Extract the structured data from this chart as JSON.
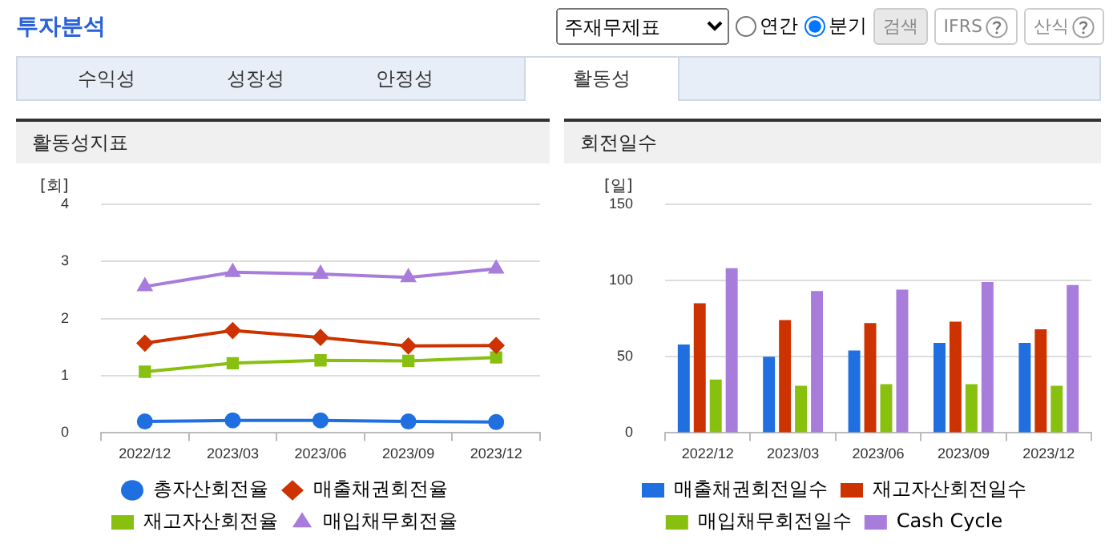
{
  "chart_data": [
    {
      "type": "line",
      "title": "활동성지표",
      "ylabel": "[회]",
      "categories": [
        "2022/12",
        "2023/03",
        "2023/06",
        "2023/09",
        "2023/12"
      ],
      "series": [
        {
          "name": "총자산회전율",
          "color": "#1f6fe0",
          "marker": "circle",
          "values": [
            0.2,
            0.22,
            0.22,
            0.2,
            0.19
          ]
        },
        {
          "name": "매출채권회전율",
          "color": "#cc3300",
          "marker": "diamond",
          "values": [
            1.57,
            1.79,
            1.67,
            1.52,
            1.53
          ]
        },
        {
          "name": "재고자산회전율",
          "color": "#88c010",
          "marker": "square",
          "values": [
            1.07,
            1.22,
            1.27,
            1.26,
            1.32
          ]
        },
        {
          "name": "매입채무회전율",
          "color": "#a77cdb",
          "marker": "triangle",
          "values": [
            2.56,
            2.81,
            2.78,
            2.72,
            2.87
          ]
        }
      ],
      "ylim": [
        0,
        4
      ],
      "yticks": [
        0,
        1,
        2,
        3,
        4
      ],
      "grid": "y",
      "legend": "bottom",
      "annotations": [
        "투자분석",
        "주재무제표",
        "연간",
        "분기",
        "검색",
        "IFRS",
        "산식",
        "수익성",
        "성장성",
        "안정성",
        "활동성"
      ]
    },
    {
      "type": "bar",
      "title": "회전일수",
      "ylabel": "[일]",
      "categories": [
        "2022/12",
        "2023/03",
        "2023/06",
        "2023/09",
        "2023/12"
      ],
      "series": [
        {
          "name": "매출채권회전일수",
          "color": "#1f6fe0",
          "values": [
            58,
            50,
            54,
            59,
            59
          ]
        },
        {
          "name": "재고자산회전일수",
          "color": "#cc3300",
          "values": [
            85,
            74,
            72,
            73,
            68
          ]
        },
        {
          "name": "매입채무회전일수",
          "color": "#88c010",
          "values": [
            35,
            31,
            32,
            32,
            31
          ]
        },
        {
          "name": "Cash Cycle",
          "color": "#a77cdb",
          "values": [
            108,
            93,
            94,
            99,
            97
          ]
        }
      ],
      "ylim": [
        0,
        150
      ],
      "yticks": [
        0,
        50,
        100,
        150
      ],
      "grid": "y",
      "legend": "bottom"
    }
  ]
}
